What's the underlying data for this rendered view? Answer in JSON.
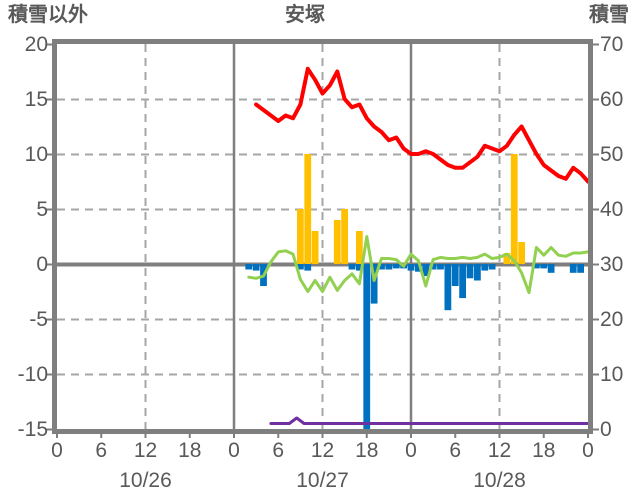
{
  "header": {
    "left_axis_title": "積雪以外",
    "station_title": "安塚",
    "right_axis_title": "積雪"
  },
  "chart_data": {
    "type": "combo (dual-axis line + hourly bars)",
    "title": "安塚",
    "grid": "12-hour dashed verticals, solid day boundaries, dashed horizontals, heavy zero line",
    "colors": {
      "red_line": "#FF0000",
      "green_line": "#92D050",
      "yellow_bars": "#FFC000",
      "blue_bars": "#0070C0",
      "purple_line": "#7030A0",
      "frame": "#7F7F7F",
      "gridline": "#A6A6A6",
      "text": "#595959"
    },
    "left_axis": {
      "label": "積雪以外",
      "min": -15,
      "max": 20,
      "ticks": [
        20,
        15,
        10,
        5,
        0,
        -5,
        -10,
        -15
      ]
    },
    "right_axis": {
      "label": "積雪",
      "min": 0,
      "max": 70,
      "ticks": [
        70,
        60,
        50,
        40,
        30,
        20,
        10,
        0
      ]
    },
    "x_axis": {
      "total_hours": 72,
      "tick_step_hours": 6,
      "hour_labels": [
        "0",
        "6",
        "12",
        "18",
        "0",
        "6",
        "12",
        "18",
        "0",
        "6",
        "12",
        "18",
        "0"
      ],
      "dates": [
        "10/26",
        "10/27",
        "10/28"
      ]
    },
    "series": [
      {
        "name": "red-line",
        "type": "line",
        "axis": "right",
        "color": "#FF0000",
        "width": 4,
        "points": [
          [
            27,
            59
          ],
          [
            28,
            58
          ],
          [
            29,
            57
          ],
          [
            30,
            56
          ],
          [
            31,
            57
          ],
          [
            32,
            56.5
          ],
          [
            33,
            59
          ],
          [
            34,
            65.5
          ],
          [
            35,
            63.5
          ],
          [
            36,
            61
          ],
          [
            37,
            62.5
          ],
          [
            38,
            65
          ],
          [
            39,
            60
          ],
          [
            40,
            58.5
          ],
          [
            41,
            59
          ],
          [
            42,
            56.5
          ],
          [
            43,
            55
          ],
          [
            44,
            54
          ],
          [
            45,
            52.5
          ],
          [
            46,
            53
          ],
          [
            47,
            51
          ],
          [
            48,
            50
          ],
          [
            49,
            50
          ],
          [
            50,
            50.5
          ],
          [
            51,
            50
          ],
          [
            52,
            49
          ],
          [
            53,
            48
          ],
          [
            54,
            47.5
          ],
          [
            55,
            47.5
          ],
          [
            56,
            48.5
          ],
          [
            57,
            49.5
          ],
          [
            58,
            51.5
          ],
          [
            59,
            51
          ],
          [
            60,
            50.5
          ],
          [
            61,
            51.5
          ],
          [
            62,
            53.5
          ],
          [
            63,
            55
          ],
          [
            64,
            52.5
          ],
          [
            65,
            50
          ],
          [
            66,
            48
          ],
          [
            67,
            47
          ],
          [
            68,
            46
          ],
          [
            69,
            45.5
          ],
          [
            70,
            47.5
          ],
          [
            71,
            46.5
          ],
          [
            72,
            45
          ]
        ]
      },
      {
        "name": "green-line",
        "type": "line",
        "axis": "left",
        "color": "#92D050",
        "width": 3,
        "points": [
          [
            26,
            -1.2
          ],
          [
            27,
            -1.3
          ],
          [
            28,
            -1.1
          ],
          [
            29,
            0.2
          ],
          [
            30,
            1.1
          ],
          [
            31,
            1.2
          ],
          [
            32,
            0.9
          ],
          [
            33,
            -1.4
          ],
          [
            34,
            -2.5
          ],
          [
            35,
            -1.5
          ],
          [
            36,
            -2.5
          ],
          [
            37,
            -1.2
          ],
          [
            38,
            -2.4
          ],
          [
            39,
            -1.5
          ],
          [
            40,
            -0.9
          ],
          [
            41,
            -1.8
          ],
          [
            42,
            2.5
          ],
          [
            43,
            -1.5
          ],
          [
            44,
            0.5
          ],
          [
            45,
            0.5
          ],
          [
            46,
            0.4
          ],
          [
            47,
            -0.2
          ],
          [
            48,
            0.9
          ],
          [
            49,
            0.3
          ],
          [
            50,
            -2
          ],
          [
            51,
            0.4
          ],
          [
            52,
            0.6
          ],
          [
            53,
            0.5
          ],
          [
            54,
            0.5
          ],
          [
            55,
            0.6
          ],
          [
            56,
            0.5
          ],
          [
            57,
            0.6
          ],
          [
            58,
            0.9
          ],
          [
            59,
            0.5
          ],
          [
            60,
            0.6
          ],
          [
            61,
            0.9
          ],
          [
            62,
            0.3
          ],
          [
            63,
            -0.8
          ],
          [
            64,
            -2.6
          ],
          [
            65,
            1.5
          ],
          [
            66,
            0.8
          ],
          [
            67,
            1.5
          ],
          [
            68,
            0.8
          ],
          [
            69,
            0.7
          ],
          [
            70,
            1
          ],
          [
            71,
            1
          ],
          [
            72,
            1.1
          ]
        ]
      },
      {
        "name": "yellow-bars",
        "type": "bar",
        "axis": "left",
        "color": "#FFC000",
        "points": [
          [
            33,
            5
          ],
          [
            34,
            10
          ],
          [
            35,
            3
          ],
          [
            38,
            4
          ],
          [
            39,
            5
          ],
          [
            41,
            3
          ],
          [
            61,
            1
          ],
          [
            62,
            10
          ],
          [
            63,
            2
          ]
        ]
      },
      {
        "name": "blue-bars",
        "type": "bar",
        "axis": "left",
        "color": "#0070C0",
        "points": [
          [
            26,
            -0.5
          ],
          [
            27,
            -0.6
          ],
          [
            28,
            -2
          ],
          [
            33,
            -0.5
          ],
          [
            34,
            -0.6
          ],
          [
            40,
            -0.5
          ],
          [
            41,
            -0.6
          ],
          [
            42,
            -15
          ],
          [
            43,
            -3.6
          ],
          [
            44,
            -0.5
          ],
          [
            45,
            -0.5
          ],
          [
            46,
            -0.4
          ],
          [
            47,
            -0.4
          ],
          [
            48,
            -0.6
          ],
          [
            49,
            -0.7
          ],
          [
            50,
            -1.1
          ],
          [
            51,
            -0.5
          ],
          [
            52,
            -0.5
          ],
          [
            53,
            -4.2
          ],
          [
            54,
            -2
          ],
          [
            55,
            -3.1
          ],
          [
            56,
            -1.3
          ],
          [
            57,
            -1.5
          ],
          [
            58,
            -0.6
          ],
          [
            59,
            -0.5
          ],
          [
            65,
            -0.4
          ],
          [
            66,
            -0.4
          ],
          [
            67,
            -0.8
          ],
          [
            70,
            -0.8
          ],
          [
            71,
            -0.8
          ]
        ]
      },
      {
        "name": "purple-line",
        "type": "line",
        "axis": "right",
        "color": "#7030A0",
        "width": 3,
        "points": [
          [
            29,
            1
          ],
          [
            31.5,
            1
          ],
          [
            32.5,
            2
          ],
          [
            33.5,
            1
          ],
          [
            72,
            1
          ]
        ]
      }
    ]
  }
}
